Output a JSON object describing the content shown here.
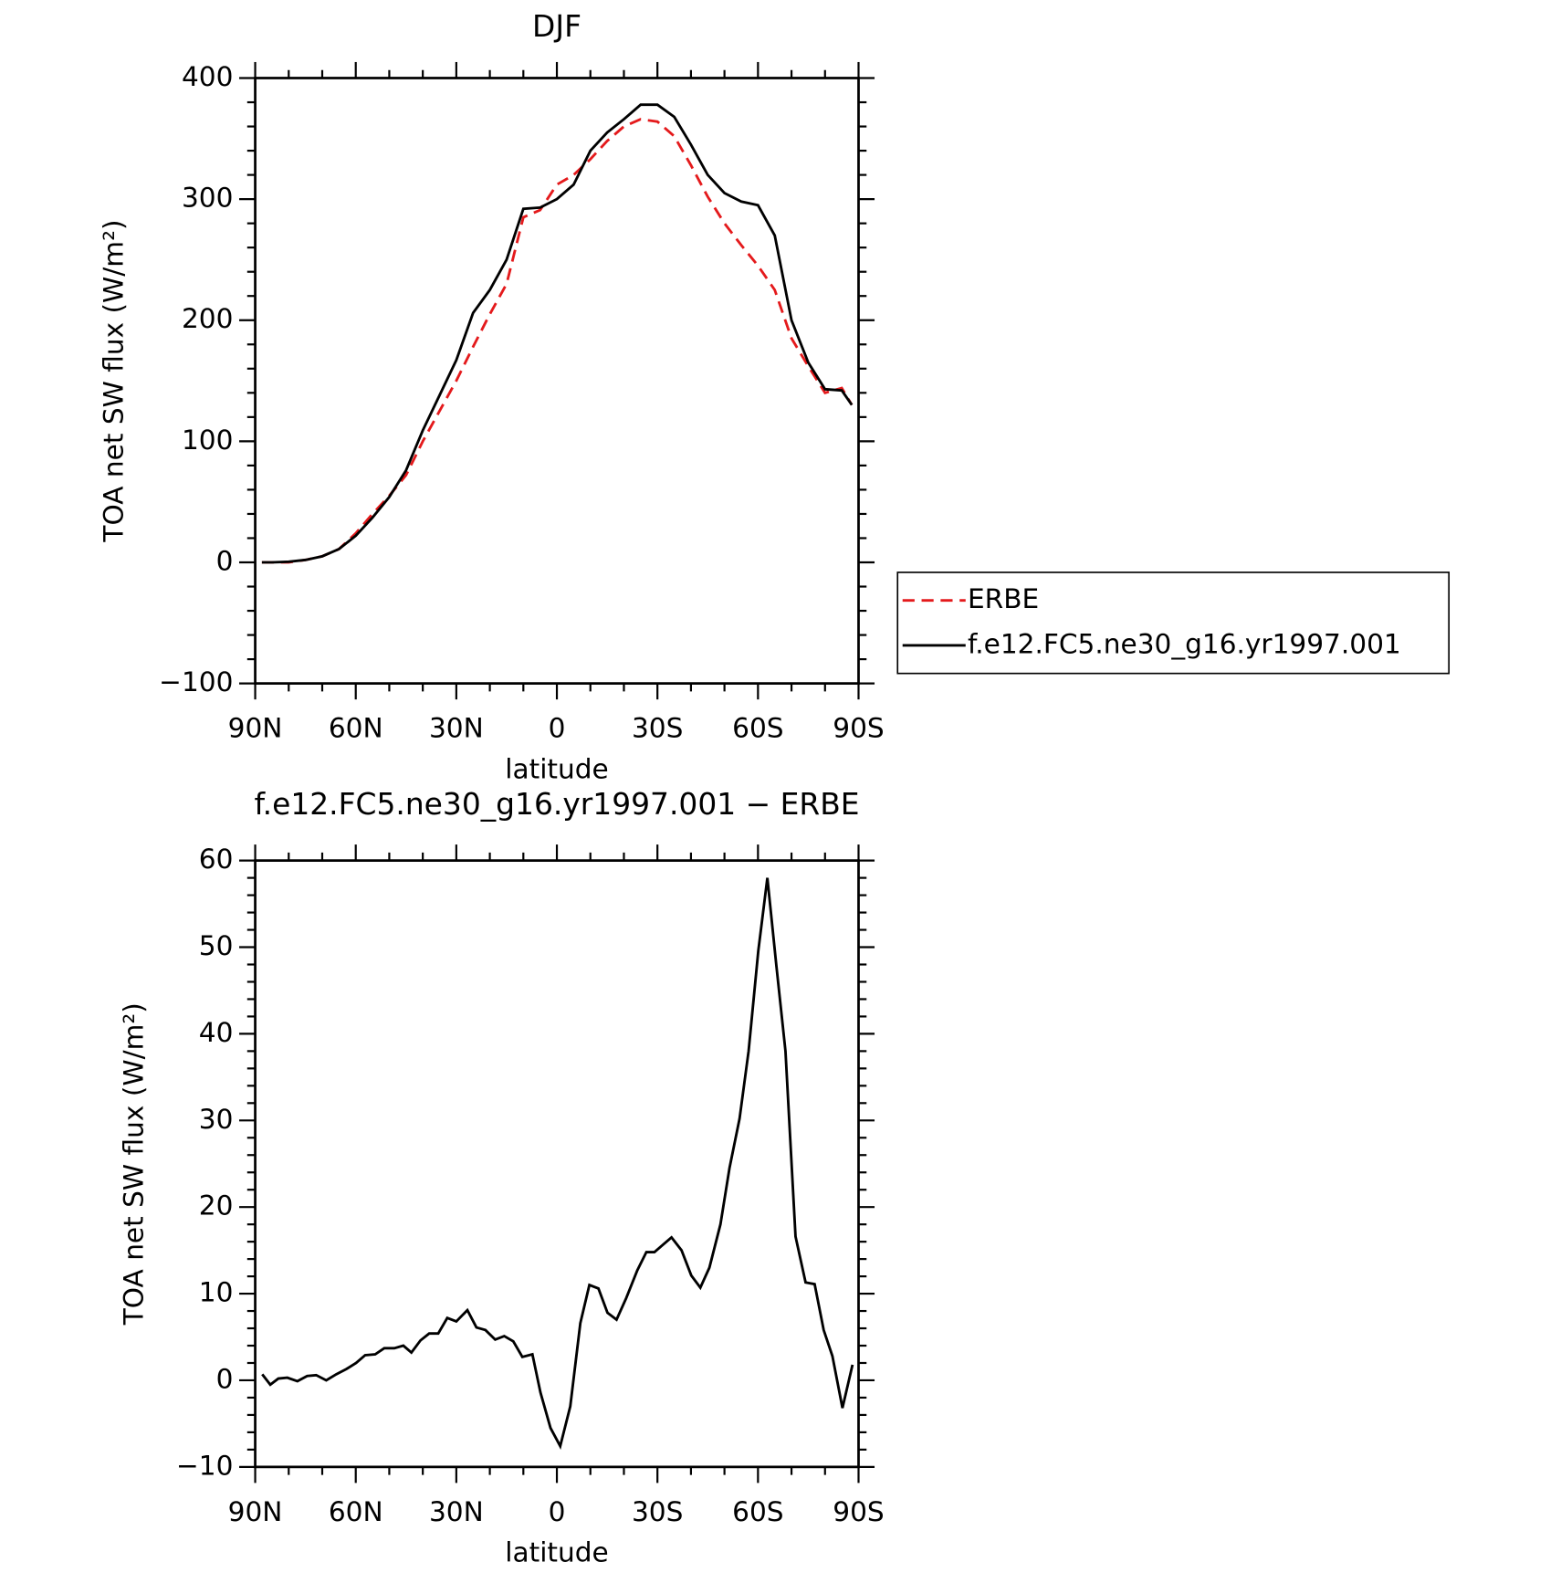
{
  "chart_data": [
    {
      "type": "line",
      "title": "DJF",
      "xlabel": "latitude",
      "ylabel": "TOA net SW flux (W/m²)",
      "x": [
        88,
        85,
        80,
        75,
        70,
        65,
        60,
        55,
        50,
        45,
        40,
        35,
        30,
        25,
        20,
        15,
        10,
        5,
        0,
        -5,
        -10,
        -15,
        -20,
        -25,
        -30,
        -35,
        -40,
        -45,
        -50,
        -55,
        -60,
        -65,
        -70,
        -75,
        -80,
        -85,
        -88
      ],
      "series": [
        {
          "name": "ERBE",
          "color": "#e41a1c",
          "style": "dashed",
          "values": [
            0,
            0,
            0,
            2,
            5,
            11,
            24,
            40,
            55,
            72,
            100,
            125,
            150,
            178,
            205,
            230,
            285,
            291,
            312,
            320,
            333,
            348,
            360,
            366,
            364,
            352,
            328,
            302,
            280,
            262,
            245,
            225,
            185,
            162,
            140,
            144,
            130
          ]
        },
        {
          "name": "f.e12.FC5.ne30_g16.yr1997.001",
          "color": "#000000",
          "style": "solid",
          "values": [
            0,
            0,
            0.5,
            2,
            5,
            11,
            22,
            37,
            54,
            76,
            109,
            138,
            167,
            206,
            225,
            250,
            292,
            293,
            300,
            312,
            340,
            355,
            366,
            378,
            378,
            368,
            345,
            320,
            305,
            298,
            295,
            270,
            200,
            165,
            143,
            142,
            130
          ]
        }
      ],
      "xlim": [
        90,
        -90
      ],
      "xticks": [
        {
          "value": 90,
          "label": "90N"
        },
        {
          "value": 60,
          "label": "60N"
        },
        {
          "value": 30,
          "label": "30N"
        },
        0,
        {
          "value": -30,
          "label": "30S"
        },
        {
          "value": -60,
          "label": "60S"
        },
        {
          "value": -90,
          "label": "90S"
        }
      ],
      "ylim": [
        -100,
        400
      ],
      "yticks": [
        {
          "value": -100,
          "label": "−100"
        },
        0,
        100,
        200,
        300,
        400
      ],
      "legend": "right"
    },
    {
      "type": "line",
      "title": "f.e12.FC5.ne30_g16.yr1997.001 − ERBE",
      "xlabel": "latitude",
      "ylabel": "TOA net SW flux (W/m²)",
      "x": [
        87.9,
        85.5,
        83.1,
        80.4,
        77.4,
        74.5,
        71.8,
        68.8,
        65.8,
        62.8,
        59.9,
        57.2,
        54.2,
        51.5,
        48.5,
        45.8,
        43.4,
        40.7,
        38.1,
        35.4,
        32.7,
        30.0,
        26.7,
        24.0,
        21.3,
        18.4,
        15.7,
        13.0,
        10.3,
        7.3,
        4.9,
        1.9,
        -1.0,
        -4.0,
        -7.0,
        -9.7,
        -12.4,
        -15.1,
        -17.8,
        -20.7,
        -24.0,
        -26.7,
        -29.1,
        -31.5,
        -34.2,
        -37.2,
        -40.1,
        -42.8,
        -45.5,
        -48.8,
        -51.5,
        -54.5,
        -57.2,
        -60.1,
        -62.8,
        -65.5,
        -68.2,
        -71.2,
        -74.2,
        -76.9,
        -79.6,
        -82.2,
        -85.2,
        -88.2
      ],
      "series": [
        {
          "name": "f.e12.FC5.ne30_g16.yr1997.001 − ERBE",
          "color": "#000000",
          "style": "solid",
          "values": [
            0.7,
            -0.5,
            0.2,
            0.3,
            -0.1,
            0.5,
            0.6,
            0,
            0.7,
            1.3,
            2,
            2.9,
            3,
            3.7,
            3.7,
            4,
            3.2,
            4.6,
            5.4,
            5.4,
            7.2,
            6.8,
            8.1,
            6.1,
            5.8,
            4.7,
            5.1,
            4.5,
            2.7,
            3,
            -1.4,
            -5.5,
            -7.6,
            -3,
            6.6,
            11,
            10.6,
            7.8,
            7,
            9.5,
            12.7,
            14.8,
            14.8,
            15.6,
            16.5,
            15,
            12.1,
            10.7,
            13,
            18,
            24.5,
            30.2,
            38,
            49.6,
            58,
            47.8,
            38,
            16.6,
            11.3,
            11.1,
            5.8,
            2.8,
            -3.2,
            1.8
          ]
        }
      ],
      "xlim": [
        90,
        -90
      ],
      "xticks": [
        {
          "value": 90,
          "label": "90N"
        },
        {
          "value": 60,
          "label": "60N"
        },
        {
          "value": 30,
          "label": "30N"
        },
        0,
        {
          "value": -30,
          "label": "30S"
        },
        {
          "value": -60,
          "label": "60S"
        },
        {
          "value": -90,
          "label": "90S"
        }
      ],
      "ylim": [
        -10,
        60
      ],
      "yticks": [
        {
          "value": -10,
          "label": "−10"
        },
        0,
        10,
        20,
        30,
        40,
        50,
        60
      ]
    }
  ]
}
